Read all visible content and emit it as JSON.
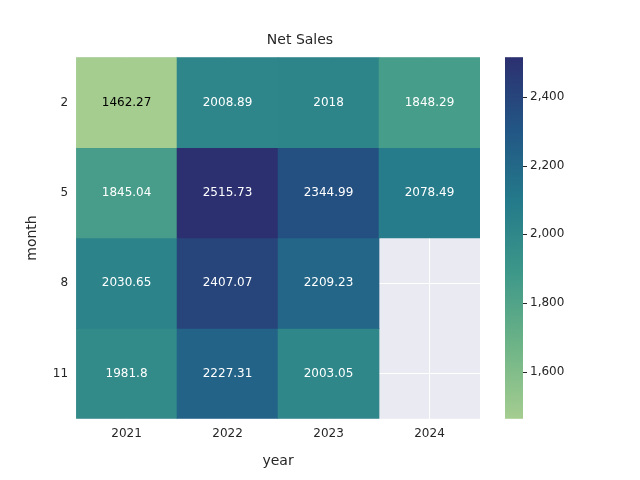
{
  "chart_data": {
    "type": "heatmap",
    "title": "Net Sales",
    "x_label": "year",
    "y_label": "month",
    "x": [
      "2021",
      "2022",
      "2023",
      "2024"
    ],
    "y": [
      "2",
      "5",
      "8",
      "11"
    ],
    "cells": [
      [
        1462.27,
        2008.89,
        2018,
        1848.29
      ],
      [
        1845.04,
        2515.73,
        2344.99,
        2078.49
      ],
      [
        2030.65,
        2407.07,
        2209.23,
        null
      ],
      [
        1981.8,
        2227.31,
        2003.05,
        null
      ]
    ],
    "data_labels": true,
    "colorbar": {
      "range": [
        1462.27,
        2515.73
      ],
      "ticks": [
        1600,
        1800,
        2000,
        2200,
        2400
      ]
    }
  }
}
